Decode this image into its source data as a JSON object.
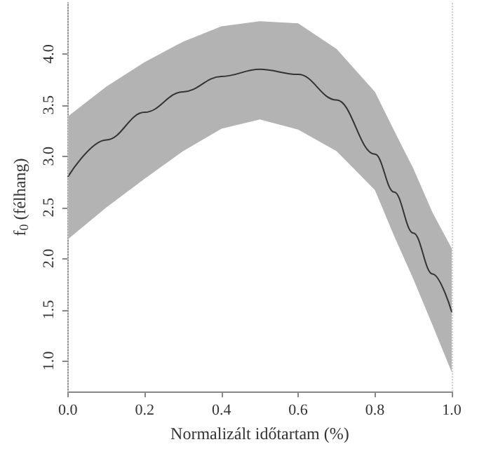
{
  "chart_data": {
    "type": "line",
    "xlabel": "Normalizált időtartam (%)",
    "ylabel": "f$_{0}$ (félhang)",
    "x": [
      0,
      0.1,
      0.2,
      0.3,
      0.4,
      0.5,
      0.6,
      0.7,
      0.8,
      0.85,
      0.9,
      0.95,
      1.0
    ],
    "series": [
      {
        "color": "#333333",
        "values": [
          2.8,
          3.16,
          3.43,
          3.63,
          3.78,
          3.85,
          3.8,
          3.55,
          3.02,
          2.65,
          2.25,
          1.85,
          1.48
        ],
        "upper": [
          3.39,
          3.68,
          3.92,
          4.12,
          4.27,
          4.32,
          4.3,
          4.05,
          3.63,
          3.25,
          2.88,
          2.45,
          2.1
        ],
        "lower": [
          2.19,
          2.5,
          2.78,
          3.05,
          3.27,
          3.36,
          3.26,
          3.05,
          2.67,
          2.22,
          1.8,
          1.35,
          0.89
        ]
      }
    ],
    "xlim": [
      0,
      1
    ],
    "ylim": [
      0.7,
      4.5
    ],
    "xticks": [
      {
        "value": 0,
        "label": "0.0"
      },
      0.2,
      0.4,
      0.6,
      0.8,
      {
        "value": 1,
        "label": "1.0"
      }
    ],
    "yticks": [
      {
        "value": 1,
        "label": "1.0"
      },
      1.5,
      {
        "value": 2,
        "label": "2.0"
      },
      2.5,
      {
        "value": 3,
        "label": "3.0"
      },
      3.5,
      {
        "value": 4,
        "label": "4.0"
      }
    ],
    "ref_lines": [
      {
        "axis": "x",
        "value": 0,
        "color": "#cccccc",
        "line_style": "dotted"
      },
      {
        "axis": "x",
        "value": 1,
        "color": "#cccccc",
        "line_style": "dotted"
      }
    ],
    "grid": false,
    "marker": "none",
    "line_style": "solid"
  }
}
